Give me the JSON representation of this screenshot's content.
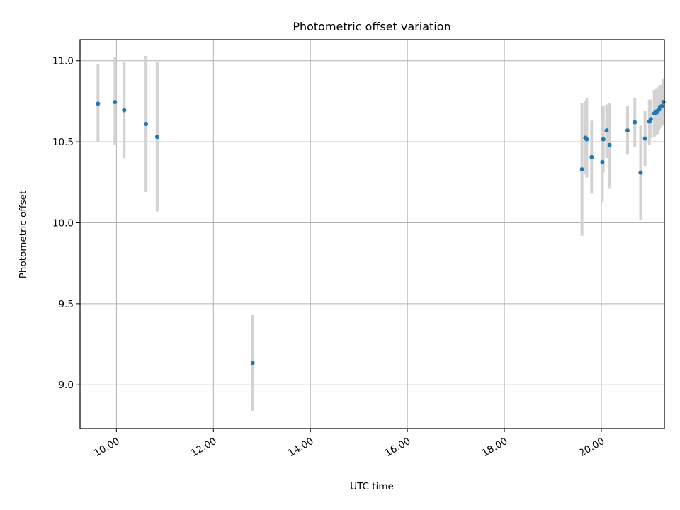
{
  "chart_data": {
    "type": "scatter",
    "title": "Photometric offset variation",
    "xlabel": "UTC time",
    "ylabel": "Photometric offset",
    "xlim_hours": [
      9.25,
      21.3
    ],
    "ylim": [
      8.73,
      11.13
    ],
    "grid": true,
    "point_color": "#1f77b4",
    "errorbar_color": "#d3d3d3",
    "x_ticks": [
      {
        "hour": 10,
        "label": "10:00"
      },
      {
        "hour": 12,
        "label": "12:00"
      },
      {
        "hour": 14,
        "label": "14:00"
      },
      {
        "hour": 16,
        "label": "16:00"
      },
      {
        "hour": 18,
        "label": "18:00"
      },
      {
        "hour": 20,
        "label": "20:00"
      }
    ],
    "y_ticks": [
      {
        "value": 9.0,
        "label": "9.0"
      },
      {
        "value": 9.5,
        "label": "9.5"
      },
      {
        "value": 10.0,
        "label": "10.0"
      },
      {
        "value": 10.5,
        "label": "10.5"
      },
      {
        "value": 11.0,
        "label": "11.0"
      }
    ],
    "points": [
      {
        "t": 9.62,
        "y": 10.735,
        "lo": 10.5,
        "hi": 10.98
      },
      {
        "t": 9.97,
        "y": 10.745,
        "lo": 10.48,
        "hi": 11.02
      },
      {
        "t": 10.16,
        "y": 10.695,
        "lo": 10.4,
        "hi": 10.99
      },
      {
        "t": 10.61,
        "y": 10.61,
        "lo": 10.19,
        "hi": 11.03
      },
      {
        "t": 10.84,
        "y": 10.53,
        "lo": 10.07,
        "hi": 10.99
      },
      {
        "t": 12.81,
        "y": 9.135,
        "lo": 8.84,
        "hi": 9.43
      },
      {
        "t": 19.6,
        "y": 10.33,
        "lo": 9.92,
        "hi": 10.74
      },
      {
        "t": 19.67,
        "y": 10.525,
        "lo": 10.3,
        "hi": 10.75
      },
      {
        "t": 19.7,
        "y": 10.515,
        "lo": 10.28,
        "hi": 10.77
      },
      {
        "t": 19.8,
        "y": 10.405,
        "lo": 10.18,
        "hi": 10.63
      },
      {
        "t": 20.02,
        "y": 10.375,
        "lo": 10.13,
        "hi": 10.62
      },
      {
        "t": 20.04,
        "y": 10.515,
        "lo": 10.31,
        "hi": 10.72
      },
      {
        "t": 20.11,
        "y": 10.57,
        "lo": 10.4,
        "hi": 10.73
      },
      {
        "t": 20.17,
        "y": 10.48,
        "lo": 10.21,
        "hi": 10.74
      },
      {
        "t": 20.54,
        "y": 10.57,
        "lo": 10.42,
        "hi": 10.72
      },
      {
        "t": 20.69,
        "y": 10.62,
        "lo": 10.47,
        "hi": 10.77
      },
      {
        "t": 20.81,
        "y": 10.31,
        "lo": 10.02,
        "hi": 10.6
      },
      {
        "t": 20.9,
        "y": 10.52,
        "lo": 10.35,
        "hi": 10.69
      },
      {
        "t": 20.99,
        "y": 10.625,
        "lo": 10.48,
        "hi": 10.76
      },
      {
        "t": 21.02,
        "y": 10.64,
        "lo": 10.52,
        "hi": 10.76
      },
      {
        "t": 21.09,
        "y": 10.675,
        "lo": 10.53,
        "hi": 10.82
      },
      {
        "t": 21.12,
        "y": 10.685,
        "lo": 10.55,
        "hi": 10.82
      },
      {
        "t": 21.14,
        "y": 10.68,
        "lo": 10.54,
        "hi": 10.83
      },
      {
        "t": 21.16,
        "y": 10.69,
        "lo": 10.55,
        "hi": 10.83
      },
      {
        "t": 21.19,
        "y": 10.7,
        "lo": 10.57,
        "hi": 10.84
      },
      {
        "t": 21.21,
        "y": 10.715,
        "lo": 10.59,
        "hi": 10.85
      },
      {
        "t": 21.25,
        "y": 10.72,
        "lo": 10.6,
        "hi": 10.85
      },
      {
        "t": 21.28,
        "y": 10.745,
        "lo": 10.6,
        "hi": 10.89
      }
    ]
  }
}
